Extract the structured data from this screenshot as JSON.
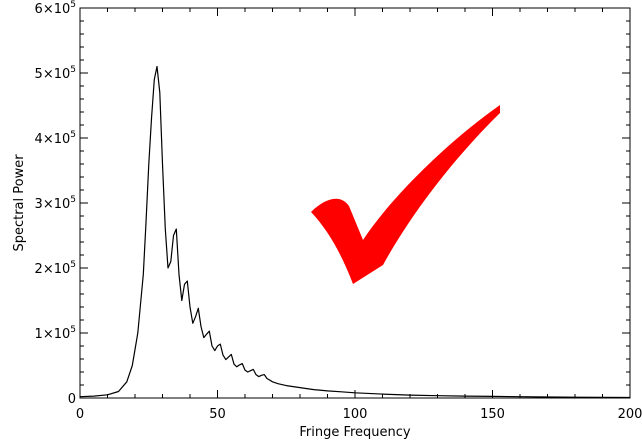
{
  "chart_data": {
    "type": "line",
    "title": "",
    "xlabel": "Fringe Frequency",
    "ylabel": "Spectral Power",
    "xlim": [
      0,
      200
    ],
    "ylim": [
      0,
      600000
    ],
    "grid": false,
    "x_ticks": [
      0,
      50,
      100,
      150,
      200
    ],
    "x_tick_labels": [
      "0",
      "50",
      "100",
      "150",
      "200"
    ],
    "y_ticks": [
      0,
      100000,
      200000,
      300000,
      400000,
      500000,
      600000
    ],
    "y_tick_labels": [
      {
        "mantissa": "0",
        "exp": ""
      },
      {
        "mantissa": "1×10",
        "exp": "5"
      },
      {
        "mantissa": "2×10",
        "exp": "5"
      },
      {
        "mantissa": "3×10",
        "exp": "5"
      },
      {
        "mantissa": "4×10",
        "exp": "5"
      },
      {
        "mantissa": "5×10",
        "exp": "5"
      },
      {
        "mantissa": "6×10",
        "exp": "5"
      }
    ],
    "series": [
      {
        "color": "#000000",
        "x": [
          0,
          5,
          10,
          14,
          17,
          19,
          21,
          23,
          24,
          25,
          26,
          27,
          28,
          29,
          30,
          31,
          32,
          33,
          34,
          35,
          36,
          37,
          38,
          39,
          40,
          41,
          42,
          43,
          44,
          45,
          46,
          47,
          48,
          49,
          50,
          51,
          52,
          53,
          54,
          55,
          56,
          57,
          58,
          59,
          60,
          61,
          62,
          63,
          64,
          65,
          66,
          67,
          68,
          70,
          72,
          75,
          80,
          85,
          90,
          95,
          100,
          110,
          120,
          130,
          140,
          150,
          160,
          170,
          180,
          190,
          200
        ],
        "y": [
          2000,
          3000,
          5000,
          10000,
          25000,
          50000,
          100000,
          190000,
          270000,
          360000,
          430000,
          490000,
          510000,
          470000,
          360000,
          260000,
          200000,
          210000,
          250000,
          260000,
          190000,
          150000,
          175000,
          180000,
          140000,
          115000,
          125000,
          138000,
          110000,
          93000,
          98000,
          103000,
          80000,
          73000,
          80000,
          83000,
          66000,
          59000,
          63000,
          67000,
          52000,
          48000,
          51000,
          53000,
          43000,
          40000,
          42000,
          44000,
          36000,
          33000,
          35000,
          36000,
          30000,
          25000,
          22000,
          19000,
          16000,
          13000,
          11000,
          9500,
          8000,
          6000,
          4500,
          3500,
          3000,
          2500,
          2000,
          1500,
          1200,
          1000,
          800
        ]
      }
    ],
    "annotations": [
      {
        "type": "check-mark",
        "color": "#ff0000"
      }
    ]
  }
}
